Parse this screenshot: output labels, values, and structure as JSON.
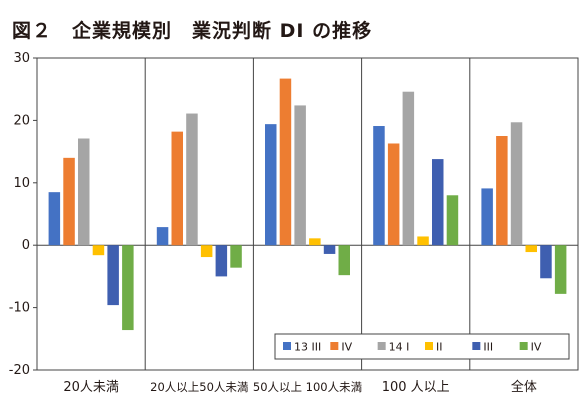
{
  "chart_data": {
    "type": "bar",
    "title": "図２　企業規模別　業況判断 DI の推移",
    "categories": [
      "20人未満",
      "20人以上50人未満",
      "50人以上  100人未満",
      "100  人以上",
      "全体"
    ],
    "series": [
      {
        "name": "13 III",
        "color": "#4472c4",
        "values": [
          8.5,
          2.9,
          19.4,
          19.1,
          9.1
        ]
      },
      {
        "name": "IV",
        "color": "#ed7d31",
        "values": [
          14.0,
          18.2,
          26.7,
          16.3,
          17.5
        ]
      },
      {
        "name": "14 I",
        "color": "#a5a5a5",
        "values": [
          17.1,
          21.1,
          22.4,
          24.6,
          19.7
        ]
      },
      {
        "name": "II",
        "color": "#ffc000",
        "values": [
          -1.6,
          -1.9,
          1.1,
          1.4,
          -1.1
        ]
      },
      {
        "name": "III",
        "color": "#3f5fb0",
        "values": [
          -9.6,
          -5.0,
          -1.4,
          13.8,
          -5.3
        ]
      },
      {
        "name": "IV",
        "color": "#70ad47",
        "values": [
          -13.6,
          -3.6,
          -4.8,
          8.0,
          -7.8
        ]
      }
    ],
    "ylim": [
      -20,
      30
    ],
    "yticks": [
      -20,
      -10,
      0,
      10,
      20,
      30
    ],
    "grid": "vertical category separators",
    "legend_position": "bottom-right"
  }
}
